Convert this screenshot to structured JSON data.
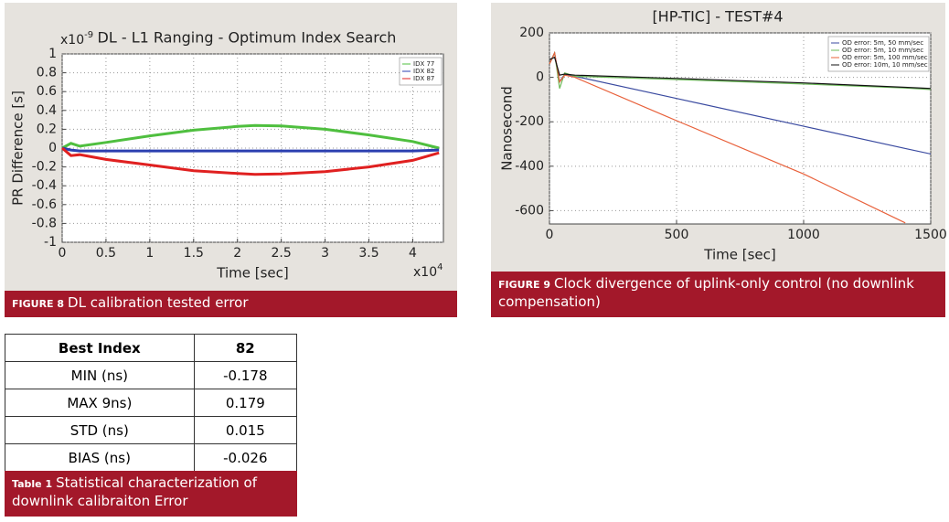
{
  "figures": [
    {
      "caption_label": "FIGURE 8",
      "caption": "DL calibration tested error"
    },
    {
      "caption_label": "FIGURE 9",
      "caption": "Clock divergence of uplink-only control (no downlink compensation)"
    }
  ],
  "chart_data": [
    {
      "type": "line",
      "title": "DL - L1 Ranging - Optimum Index Search",
      "xlabel": "Time [sec]",
      "ylabel": "PR Difference [s]",
      "y_multiplier": {
        "base": "x10",
        "exponent": "-9"
      },
      "x_multiplier": {
        "base": "x10",
        "exponent": "4"
      },
      "x": [
        0,
        0.1,
        0.2,
        0.5,
        1,
        1.5,
        2,
        2.2,
        2.5,
        3,
        3.5,
        4,
        4.3
      ],
      "series": [
        {
          "name": "IDX 77",
          "color": "#4fbf3f",
          "values": [
            0,
            0.05,
            0.02,
            0.06,
            0.13,
            0.19,
            0.23,
            0.24,
            0.235,
            0.2,
            0.14,
            0.07,
            0
          ]
        },
        {
          "name": "IDX 82",
          "color": "#2b3fb0",
          "values": [
            0,
            -0.02,
            -0.03,
            -0.03,
            -0.03,
            -0.03,
            -0.03,
            -0.03,
            -0.03,
            -0.03,
            -0.03,
            -0.03,
            -0.02
          ]
        },
        {
          "name": "IDX 87",
          "color": "#e02020",
          "values": [
            0,
            -0.08,
            -0.07,
            -0.12,
            -0.18,
            -0.24,
            -0.27,
            -0.28,
            -0.275,
            -0.25,
            -0.2,
            -0.13,
            -0.05
          ]
        }
      ],
      "xlim": [
        0,
        4.35
      ],
      "ylim": [
        -1,
        1
      ],
      "xticks": [
        0,
        0.5,
        1,
        1.5,
        2,
        2.5,
        3,
        3.5,
        4
      ],
      "yticks": [
        -1,
        -0.8,
        -0.6,
        -0.4,
        -0.2,
        0,
        0.2,
        0.4,
        0.6,
        0.8,
        1
      ],
      "grid": true,
      "legend": "upper right"
    },
    {
      "type": "line",
      "title": "[HP-TIC] - TEST#4",
      "xlabel": "Time [sec]",
      "ylabel": "Nanosecond",
      "x": [
        0,
        20,
        40,
        60,
        100,
        500,
        1000,
        1400,
        1500
      ],
      "series": [
        {
          "name": "OD error: 5m, 50 mm/sec",
          "color": "#3a4aa0",
          "values": [
            60,
            110,
            -20,
            15,
            5,
            -95,
            -220,
            -320,
            -345
          ]
        },
        {
          "name": "OD error: 5m, 10 mm/sec",
          "color": "#6dbb5a",
          "values": [
            60,
            110,
            -50,
            20,
            5,
            -10,
            -30,
            -48,
            -55
          ]
        },
        {
          "name": "OD error: 5m, 100 mm/sec",
          "color": "#e8603a",
          "values": [
            60,
            110,
            -20,
            10,
            0,
            -195,
            -435,
            -655,
            null
          ]
        },
        {
          "name": "OD error: 10m, 10 mm/sec",
          "color": "#111111",
          "values": [
            80,
            90,
            10,
            15,
            10,
            -5,
            -25,
            -45,
            -50
          ]
        }
      ],
      "xlim": [
        0,
        1500
      ],
      "ylim": [
        -660,
        200
      ],
      "xticks": [
        0,
        500,
        1000,
        1500
      ],
      "yticks": [
        -600,
        -400,
        -200,
        0,
        200
      ],
      "grid": true,
      "legend": "upper right"
    }
  ],
  "table": {
    "header": [
      "Best Index",
      "82"
    ],
    "rows": [
      [
        "MIN (ns)",
        "-0.178"
      ],
      [
        "MAX 9ns)",
        "0.179"
      ],
      [
        "STD (ns)",
        "0.015"
      ],
      [
        "BIAS (ns)",
        "-0.026"
      ]
    ],
    "caption_label": "Table 1",
    "caption": "Statistical characterization of downlink calibraiton Error"
  }
}
